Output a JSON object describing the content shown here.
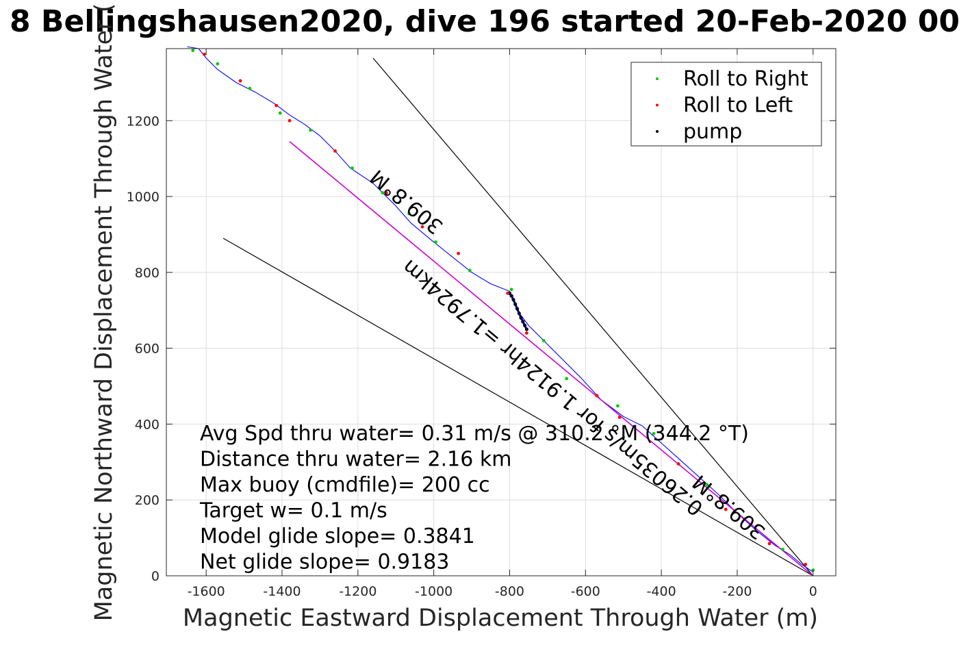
{
  "chart_data": {
    "type": "line",
    "title": "8 Bellingshausen2020, dive 196 started 20-Feb-2020 00",
    "xlabel": "Magnetic Eastward Displacement Through Water (m)",
    "ylabel": "Magnetic Northward Displacement Through Water (",
    "xlim": [
      -1705,
      60
    ],
    "ylim": [
      0,
      1390
    ],
    "xticks": [
      -1600,
      -1400,
      -1200,
      -1000,
      -800,
      -600,
      -400,
      -200,
      0
    ],
    "yticks": [
      0,
      200,
      400,
      600,
      800,
      1000,
      1200
    ],
    "grid": true,
    "legend": {
      "placement": "top-right",
      "entries": [
        {
          "label": "Roll to Right",
          "color": "#00cc00"
        },
        {
          "label": "Roll to Left",
          "color": "#ff0000"
        },
        {
          "label": "pump",
          "color": "#000000"
        }
      ]
    },
    "series": [
      {
        "style": "blue-line",
        "color": "#0000ff",
        "x": [
          0,
          -30,
          -60,
          -100,
          -150,
          -200,
          -250,
          -300,
          -350,
          -400,
          -450,
          -500,
          -560,
          -610,
          -660,
          -710,
          -750,
          -780,
          -800,
          -850,
          -900,
          -950,
          -1000,
          -1060,
          -1100,
          -1160,
          -1220,
          -1260,
          -1300,
          -1340,
          -1380,
          -1420,
          -1470,
          -1520,
          -1570,
          -1600,
          -1620,
          -1650
        ],
        "y": [
          10,
          30,
          55,
          80,
          120,
          165,
          215,
          260,
          305,
          350,
          395,
          420,
          465,
          520,
          570,
          620,
          660,
          700,
          750,
          770,
          800,
          840,
          880,
          930,
          975,
          1035,
          1075,
          1120,
          1160,
          1190,
          1215,
          1245,
          1275,
          1300,
          1335,
          1365,
          1390,
          1395
        ]
      },
      {
        "style": "magenta-line",
        "color": "#cc00cc",
        "x": [
          0,
          -1380
        ],
        "y": [
          0,
          1145
        ]
      }
    ],
    "reference_lines": [
      {
        "color": "#000000",
        "x": [
          0,
          -1160
        ],
        "y": [
          0,
          1365
        ]
      },
      {
        "color": "#000000",
        "x": [
          0,
          -1555
        ],
        "y": [
          0,
          890
        ]
      }
    ],
    "markers": {
      "roll_right": {
        "color": "#00cc00",
        "x": [
          0,
          -80,
          -280,
          -420,
          -515,
          -650,
          -710,
          -795,
          -905,
          -995,
          -1065,
          -1135,
          -1215,
          -1325,
          -1405,
          -1485,
          -1570,
          -1635
        ],
        "y": [
          15,
          70,
          240,
          375,
          448,
          520,
          620,
          755,
          805,
          880,
          955,
          1010,
          1075,
          1175,
          1220,
          1285,
          1350,
          1385
        ]
      },
      "roll_left": {
        "color": "#ff0000",
        "x": [
          -20,
          -115,
          -230,
          -355,
          -510,
          -570,
          -755,
          -805,
          -935,
          -1030,
          -1125,
          -1260,
          -1380,
          -1415,
          -1510,
          -1605
        ],
        "y": [
          30,
          85,
          175,
          295,
          418,
          475,
          640,
          745,
          850,
          920,
          1010,
          1120,
          1200,
          1240,
          1305,
          1375
        ]
      },
      "pump": {
        "color": "#000000",
        "x": [
          -800,
          -795,
          -790,
          -785,
          -780,
          -775,
          -770,
          -765,
          -760,
          -755
        ],
        "y": [
          745,
          738,
          728,
          716,
          704,
          692,
          680,
          670,
          660,
          650
        ]
      }
    },
    "annotations": [
      {
        "text": "309.8°M",
        "x": -1060,
        "y": 1000,
        "rotate": 220
      },
      {
        "text": "0.26035m/s for 1.9124hr =1.7924km",
        "x": -675,
        "y": 510,
        "rotate": 220
      },
      {
        "text": "309.8°M",
        "x": -210,
        "y": 195,
        "rotate": 220
      }
    ],
    "stats": [
      "Avg Spd thru water=  0.31 m/s @ 310.2 °M (344.2 °T)",
      "Distance thru water=  2.16 km",
      "Max buoy (cmdfile)= 200 cc",
      "Target w= 0.1 m/s",
      "Model glide slope= 0.3841",
      "Net glide slope= 0.9183"
    ]
  }
}
